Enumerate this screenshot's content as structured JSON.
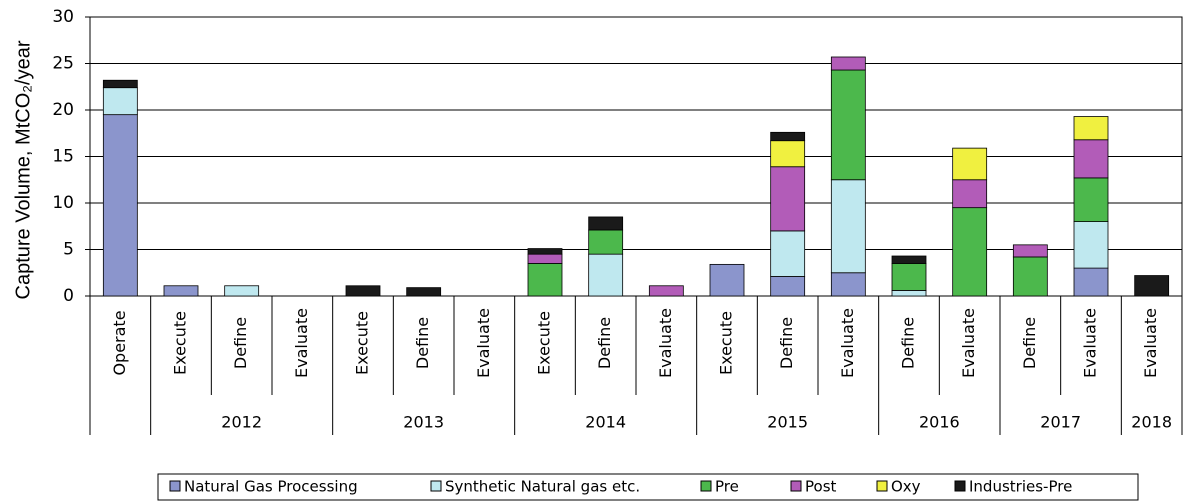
{
  "chart_data": {
    "type": "stacked_bar",
    "y_label": "Capture Volume, MtCO₂/year",
    "categories": [
      "Operate",
      "Execute",
      "Define",
      "Evaluate",
      "Execute",
      "Define",
      "Evaluate",
      "Execute",
      "Define",
      "Evaluate",
      "Execute",
      "Define",
      "Evaluate",
      "Define",
      "Evaluate",
      "Define",
      "Evaluate",
      "Evaluate"
    ],
    "x_groups": [
      null,
      "2012",
      "2012",
      "2012",
      "2013",
      "2013",
      "2013",
      "2014",
      "2014",
      "2014",
      "2015",
      "2015",
      "2015",
      "2016",
      "2016",
      "2017",
      "2017",
      "2018"
    ],
    "series": [
      {
        "name": "Natural Gas Processing",
        "color": "#8b95cc",
        "values": [
          19.5,
          1.1,
          0,
          0,
          0,
          0,
          0,
          0,
          0,
          0,
          3.4,
          2.1,
          2.5,
          0,
          0,
          0,
          3.0,
          0
        ]
      },
      {
        "name": "Synthetic Natural gas etc.",
        "color": "#bfe8ef",
        "values": [
          2.9,
          0,
          1.1,
          0,
          0,
          0,
          0,
          0,
          4.5,
          0,
          0,
          4.9,
          10.0,
          0.6,
          0,
          0,
          5.0,
          0
        ]
      },
      {
        "name": "Pre",
        "color": "#4cb84c",
        "values": [
          0,
          0,
          0,
          0,
          0,
          0,
          0,
          3.5,
          2.6,
          0,
          0,
          0,
          11.8,
          2.9,
          9.5,
          4.2,
          4.7,
          0
        ]
      },
      {
        "name": "Post",
        "color": "#b25cb8",
        "values": [
          0,
          0,
          0,
          0,
          0,
          0,
          0,
          1.0,
          0,
          1.1,
          0,
          6.9,
          1.4,
          0,
          3.0,
          1.3,
          4.1,
          0
        ]
      },
      {
        "name": "Oxy",
        "color": "#f0f040",
        "values": [
          0,
          0,
          0,
          0,
          0,
          0,
          0,
          0,
          0,
          0,
          0,
          2.8,
          0,
          0,
          3.4,
          0,
          2.5,
          0
        ]
      },
      {
        "name": "Industries-Pre",
        "color": "#1a1a1a",
        "values": [
          0.8,
          0,
          0,
          0,
          1.1,
          0.9,
          0,
          0.6,
          1.4,
          0,
          0,
          0.9,
          0,
          0.8,
          0,
          0,
          0,
          2.2
        ]
      }
    ],
    "ylim": [
      0,
      30
    ],
    "yticks": [
      0,
      5,
      10,
      15,
      20,
      25,
      30
    ],
    "grid": true,
    "legend": "bottom"
  }
}
